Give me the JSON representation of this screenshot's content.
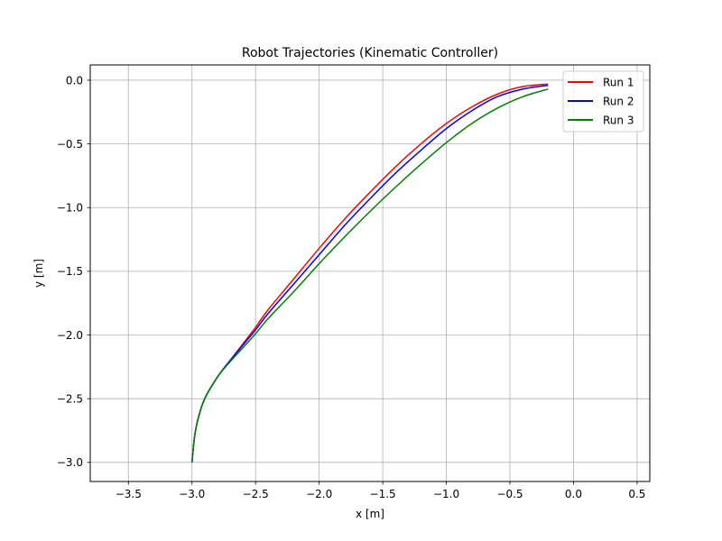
{
  "chart_data": {
    "type": "line",
    "title": "Robot Trajectories (Kinematic Controller)",
    "xlabel": "x [m]",
    "ylabel": "y [m]",
    "xlim": [
      -3.8,
      0.6
    ],
    "ylim": [
      -3.15,
      0.12
    ],
    "grid": true,
    "legend_position": "top-right",
    "xticks": [
      -3.5,
      -3.0,
      -2.5,
      -2.0,
      -1.5,
      -1.0,
      -0.5,
      0.0,
      0.5
    ],
    "yticks": [
      -3.0,
      -2.5,
      -2.0,
      -1.5,
      -1.0,
      -0.5,
      0.0
    ],
    "xtick_labels": [
      "−3.5",
      "−3.0",
      "−2.5",
      "−2.0",
      "−1.5",
      "−1.0",
      "−0.5",
      "0.0",
      "0.5"
    ],
    "ytick_labels": [
      "−3.0",
      "−2.5",
      "−2.0",
      "−1.5",
      "−1.0",
      "−0.5",
      "0.0"
    ],
    "series": [
      {
        "name": "Run 1",
        "color": "#ff0000",
        "x": [
          -3.0,
          -2.98,
          -2.95,
          -2.9,
          -2.8,
          -2.7,
          -2.6,
          -2.5,
          -2.4,
          -2.2,
          -2.0,
          -1.8,
          -1.6,
          -1.4,
          -1.2,
          -1.0,
          -0.8,
          -0.6,
          -0.4,
          -0.2
        ],
        "y": [
          -3.0,
          -2.8,
          -2.65,
          -2.5,
          -2.33,
          -2.2,
          -2.07,
          -1.94,
          -1.8,
          -1.56,
          -1.32,
          -1.09,
          -0.88,
          -0.68,
          -0.5,
          -0.34,
          -0.21,
          -0.11,
          -0.05,
          -0.03
        ]
      },
      {
        "name": "Run 2",
        "color": "#0000ff",
        "x": [
          -3.0,
          -2.98,
          -2.95,
          -2.9,
          -2.8,
          -2.7,
          -2.6,
          -2.5,
          -2.4,
          -2.2,
          -2.0,
          -1.8,
          -1.6,
          -1.4,
          -1.2,
          -1.0,
          -0.8,
          -0.6,
          -0.4,
          -0.2
        ],
        "y": [
          -3.0,
          -2.8,
          -2.65,
          -2.5,
          -2.33,
          -2.2,
          -2.08,
          -1.96,
          -1.83,
          -1.6,
          -1.37,
          -1.14,
          -0.93,
          -0.73,
          -0.55,
          -0.38,
          -0.24,
          -0.13,
          -0.07,
          -0.04
        ]
      },
      {
        "name": "Run 3",
        "color": "#008000",
        "x": [
          -3.0,
          -2.98,
          -2.95,
          -2.9,
          -2.8,
          -2.7,
          -2.6,
          -2.5,
          -2.4,
          -2.2,
          -2.0,
          -1.8,
          -1.6,
          -1.4,
          -1.2,
          -1.0,
          -0.8,
          -0.6,
          -0.4,
          -0.2
        ],
        "y": [
          -3.0,
          -2.8,
          -2.65,
          -2.5,
          -2.33,
          -2.21,
          -2.1,
          -1.99,
          -1.87,
          -1.66,
          -1.44,
          -1.23,
          -1.03,
          -0.84,
          -0.66,
          -0.49,
          -0.34,
          -0.22,
          -0.13,
          -0.07
        ]
      }
    ]
  }
}
